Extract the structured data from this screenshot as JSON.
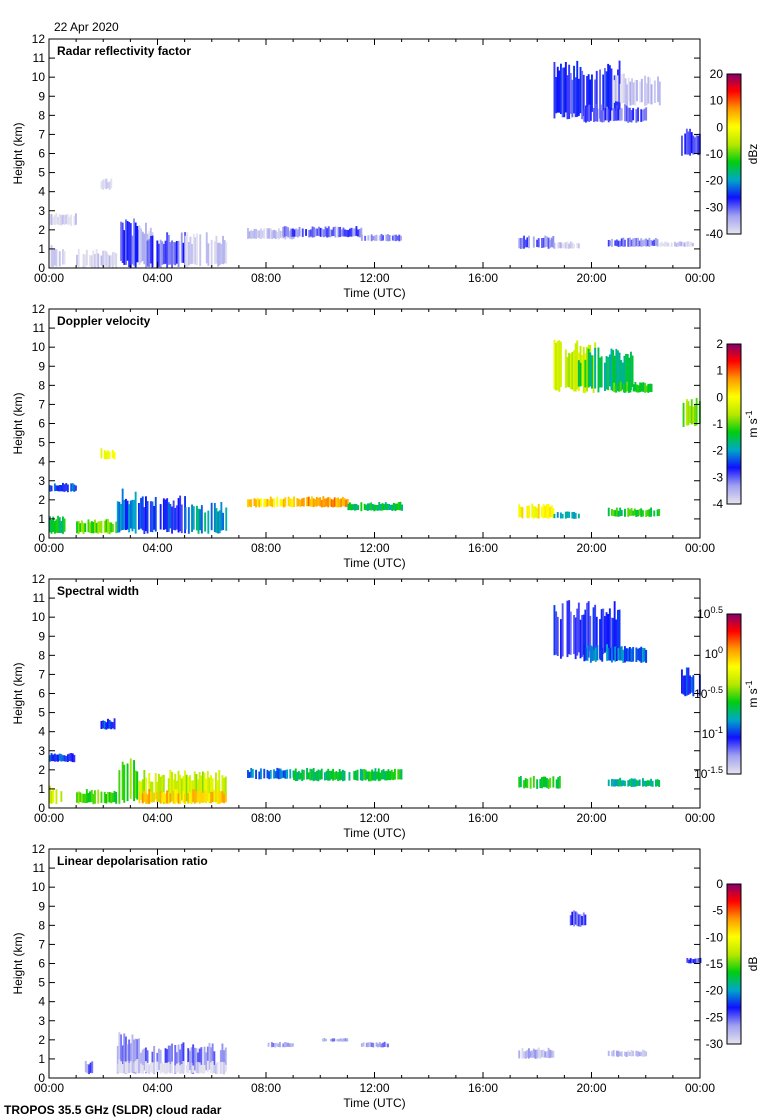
{
  "date": "22 Apr 2020",
  "footer": "TROPOS 35.5 GHz (SLDR) cloud radar",
  "colors": {
    "colormap": [
      "#e4e2ee",
      "#a0a0f0",
      "#1010ff",
      "#00a8c8",
      "#00cc10",
      "#b8e800",
      "#ffff00",
      "#ff9800",
      "#ff0000",
      "#800070"
    ],
    "axis": "#000000"
  },
  "chart_data": [
    {
      "type": "heatmap",
      "title": "Radar reflectivity factor",
      "xlabel": "Time (UTC)",
      "ylabel": "Height (km)",
      "xlim": [
        0,
        24
      ],
      "ylim": [
        0,
        12
      ],
      "xticks": [
        "00:00",
        "04:00",
        "08:00",
        "12:00",
        "16:00",
        "20:00",
        "00:00"
      ],
      "yticks": [
        "0",
        "1",
        "2",
        "3",
        "4",
        "5",
        "6",
        "7",
        "8",
        "9",
        "10",
        "11",
        "12"
      ],
      "colorbar": {
        "label": "dBz",
        "range": [
          -40,
          20
        ],
        "ticks": [
          "20",
          "10",
          "0",
          "-10",
          "-20",
          "-30",
          "-40"
        ]
      },
      "echoes": [
        [
          0,
          0.6,
          0,
          1.3,
          -39
        ],
        [
          0,
          1,
          2.2,
          2.9,
          -39
        ],
        [
          1,
          2.5,
          0,
          1,
          -39
        ],
        [
          1.9,
          2.4,
          4.1,
          4.7,
          -39
        ],
        [
          2.5,
          3.3,
          0,
          2.6,
          -29
        ],
        [
          3.3,
          3.8,
          0,
          2.7,
          -38
        ],
        [
          3.6,
          5,
          0,
          1.9,
          -30
        ],
        [
          5,
          6.5,
          0,
          1.9,
          -38
        ],
        [
          7.3,
          9,
          1.5,
          2.1,
          -37
        ],
        [
          8.6,
          11.5,
          1.6,
          2.2,
          -31
        ],
        [
          11.5,
          13,
          1.4,
          1.8,
          -33
        ],
        [
          17.3,
          18.6,
          1,
          1.7,
          -31
        ],
        [
          18.6,
          19.5,
          1,
          1.4,
          -38
        ],
        [
          18.6,
          21,
          7.8,
          10.9,
          -28
        ],
        [
          19.7,
          22,
          7.6,
          8.6,
          -30
        ],
        [
          20.8,
          22.5,
          8.5,
          10.2,
          -38
        ],
        [
          20.6,
          22.5,
          1.1,
          1.6,
          -32
        ],
        [
          22.5,
          23.7,
          1.1,
          1.4,
          -38
        ],
        [
          23.3,
          24,
          5.8,
          7.4,
          -29
        ]
      ]
    },
    {
      "type": "heatmap",
      "title": "Doppler velocity",
      "xlabel": "Time (UTC)",
      "ylabel": "Height (km)",
      "xlim": [
        0,
        24
      ],
      "ylim": [
        0,
        12
      ],
      "xticks": [
        "00:00",
        "04:00",
        "08:00",
        "12:00",
        "16:00",
        "20:00",
        "00:00"
      ],
      "yticks": [
        "0",
        "1",
        "2",
        "3",
        "4",
        "5",
        "6",
        "7",
        "8",
        "9",
        "10",
        "11",
        "12"
      ],
      "colorbar": {
        "label": "m s",
        "label_sup": "-1",
        "range": [
          -4,
          2
        ],
        "ticks": [
          "2",
          "1",
          "0",
          "-1",
          "-2",
          "-3",
          "-4"
        ]
      },
      "echoes": [
        [
          0,
          0.6,
          0.2,
          1.2,
          -1.5
        ],
        [
          0,
          1,
          2.4,
          2.9,
          -2.5
        ],
        [
          1,
          2.5,
          0.2,
          1,
          -1
        ],
        [
          1.9,
          2.4,
          4.1,
          4.7,
          0
        ],
        [
          2.5,
          3.3,
          0.2,
          2.6,
          -2.3
        ],
        [
          3.3,
          5,
          0.2,
          2.3,
          -2.6
        ],
        [
          5,
          6.5,
          0.2,
          1.9,
          -2
        ],
        [
          7.3,
          9,
          1.6,
          2.2,
          0.2
        ],
        [
          9,
          11,
          1.6,
          2.2,
          0.6
        ],
        [
          11,
          13,
          1.4,
          1.9,
          -1.6
        ],
        [
          17.3,
          18.6,
          1,
          1.8,
          0
        ],
        [
          18.6,
          19.5,
          1,
          1.4,
          -1.8
        ],
        [
          18.6,
          20.1,
          7.6,
          10.4,
          -0.5
        ],
        [
          19.5,
          21.5,
          7.6,
          10,
          -1.6
        ],
        [
          20.8,
          22.2,
          7.6,
          8.2,
          -1.2
        ],
        [
          20.6,
          22.5,
          1.1,
          1.6,
          -1.3
        ],
        [
          23.3,
          24,
          5.8,
          7.4,
          -0.9
        ]
      ]
    },
    {
      "type": "heatmap",
      "title": "Spectral width",
      "xlabel": "Time (UTC)",
      "ylabel": "Height (km)",
      "xlim": [
        0,
        24
      ],
      "ylim": [
        0,
        12
      ],
      "xticks": [
        "00:00",
        "04:00",
        "08:00",
        "12:00",
        "16:00",
        "20:00",
        "00:00"
      ],
      "yticks": [
        "0",
        "1",
        "2",
        "3",
        "4",
        "5",
        "6",
        "7",
        "8",
        "9",
        "10",
        "11",
        "12"
      ],
      "colorbar": {
        "label": "m s",
        "label_sup": "-1",
        "scale": "log",
        "range": [
          0.0316,
          3.16
        ],
        "tick_base": "10",
        "ticks": [
          "0.5",
          "0",
          "-0.5",
          "-1",
          "-1.5"
        ]
      },
      "echoes": [
        [
          0,
          1,
          2.4,
          2.9,
          0.1
        ],
        [
          0,
          0.6,
          0.2,
          1.2,
          0.5
        ],
        [
          1,
          2.5,
          0.2,
          1,
          0.3
        ],
        [
          1.9,
          2.4,
          4.1,
          4.7,
          0.1
        ],
        [
          2.5,
          3.3,
          0.2,
          2.6,
          0.3
        ],
        [
          3.3,
          6.5,
          0.2,
          2,
          0.45
        ],
        [
          3.3,
          6.5,
          0.2,
          1,
          0.9
        ],
        [
          7.3,
          9,
          1.5,
          2.1,
          0.12
        ],
        [
          9,
          13,
          1.4,
          2.1,
          0.22
        ],
        [
          17.3,
          18.8,
          1,
          1.7,
          0.25
        ],
        [
          18.6,
          21,
          7.8,
          10.9,
          0.08
        ],
        [
          19.7,
          22,
          7.6,
          8.6,
          0.12
        ],
        [
          20.6,
          22.5,
          1.1,
          1.6,
          0.18
        ],
        [
          23.3,
          24,
          5.8,
          7.4,
          0.1
        ]
      ]
    },
    {
      "type": "heatmap",
      "title": "Linear depolarisation ratio",
      "xlabel": "Time (UTC)",
      "ylabel": "Height (km)",
      "xlim": [
        0,
        24
      ],
      "ylim": [
        0,
        12
      ],
      "xticks": [
        "00:00",
        "04:00",
        "08:00",
        "12:00",
        "16:00",
        "20:00",
        "00:00"
      ],
      "yticks": [
        "0",
        "1",
        "2",
        "3",
        "4",
        "5",
        "6",
        "7",
        "8",
        "9",
        "10",
        "11",
        "12"
      ],
      "colorbar": {
        "label": "dB",
        "range": [
          -30,
          0
        ],
        "ticks": [
          "0",
          "-5",
          "-10",
          "-15",
          "-20",
          "-25",
          "-30"
        ]
      },
      "echoes": [
        [
          1.2,
          1.6,
          0.2,
          0.9,
          -26
        ],
        [
          2.5,
          3.3,
          0.2,
          2.4,
          -27
        ],
        [
          2.5,
          3.3,
          0.2,
          1,
          -30
        ],
        [
          3.3,
          6.5,
          0.2,
          1.9,
          -26
        ],
        [
          3.3,
          6.5,
          0.2,
          0.9,
          -30
        ],
        [
          8,
          9,
          1.6,
          1.9,
          -27
        ],
        [
          10,
          11,
          1.9,
          2.1,
          -27
        ],
        [
          11.5,
          12.5,
          1.6,
          1.9,
          -27
        ],
        [
          17.3,
          18.6,
          1,
          1.6,
          -28
        ],
        [
          19.2,
          19.8,
          7.9,
          8.8,
          -25
        ],
        [
          20.6,
          22,
          1.1,
          1.5,
          -28
        ],
        [
          23.5,
          24,
          6,
          6.3,
          -25
        ]
      ]
    }
  ]
}
